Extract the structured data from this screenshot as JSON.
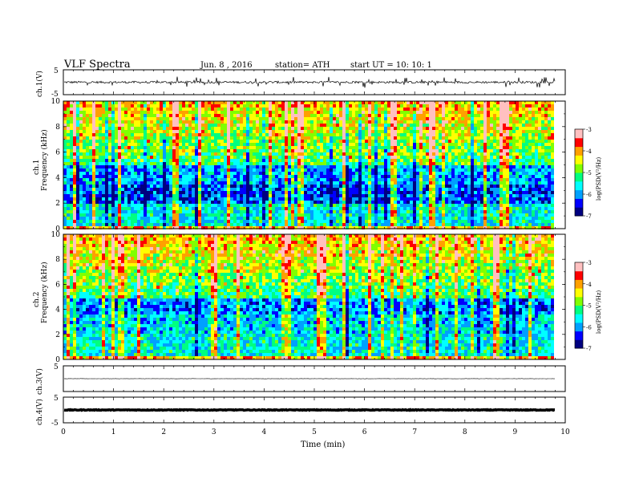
{
  "header": {
    "title": "VLF  Spectra",
    "date": "Jun. 8  , 2016",
    "station": "station= ATH",
    "start": "start  UT  =   10: 10: 1"
  },
  "chart_data": {
    "type": "heatmap",
    "xlabel": "Time  (min)",
    "xlim": [
      0,
      10
    ],
    "x_ticks": [
      "0",
      "1",
      "2",
      "3",
      "4",
      "5",
      "6",
      "7",
      "8",
      "9",
      "10"
    ],
    "data_end_min": 9.8,
    "panels": [
      {
        "id": "ch1-waveform",
        "kind": "line",
        "ylabel": "ch.1(V)",
        "ylim": [
          -5,
          5
        ],
        "y_ticks": [
          "5",
          "-5"
        ],
        "amplitude": 1.0
      },
      {
        "id": "ch1-spectrogram",
        "kind": "heatmap",
        "ylabel_top": "ch.1",
        "ylabel": "Frequency  (kHz)",
        "ylim": [
          0,
          10
        ],
        "y_ticks": [
          "0",
          "2",
          "4",
          "6",
          "8",
          "10"
        ]
      },
      {
        "id": "ch2-spectrogram",
        "kind": "heatmap",
        "ylabel_top": "ch.2",
        "ylabel": "Frequency  (kHz)",
        "ylim": [
          0,
          10
        ],
        "y_ticks": [
          "0",
          "2",
          "4",
          "6",
          "8",
          "10"
        ]
      },
      {
        "id": "ch3-waveform",
        "kind": "line",
        "ylabel": "ch.3(V)",
        "ylim": [
          -5,
          5
        ],
        "y_ticks": [
          "5"
        ],
        "amplitude": 0.05
      },
      {
        "id": "ch4-waveform",
        "kind": "line",
        "ylabel": "ch.4(V)",
        "ylim": [
          -5,
          5
        ],
        "y_ticks": [
          "5",
          "-5"
        ],
        "amplitude": 0.1
      }
    ],
    "colorbar": {
      "label": "log(PSD(V²/Hz)",
      "range": [
        -7,
        -3
      ],
      "ticks": [
        "-3",
        "-4",
        "-5",
        "-6",
        "-7"
      ],
      "colors": [
        "#000080",
        "#0000ff",
        "#00a0ff",
        "#00ffff",
        "#00ff80",
        "#80ff00",
        "#ffff00",
        "#ffa000",
        "#ff0000",
        "#ffc0c0"
      ]
    }
  }
}
